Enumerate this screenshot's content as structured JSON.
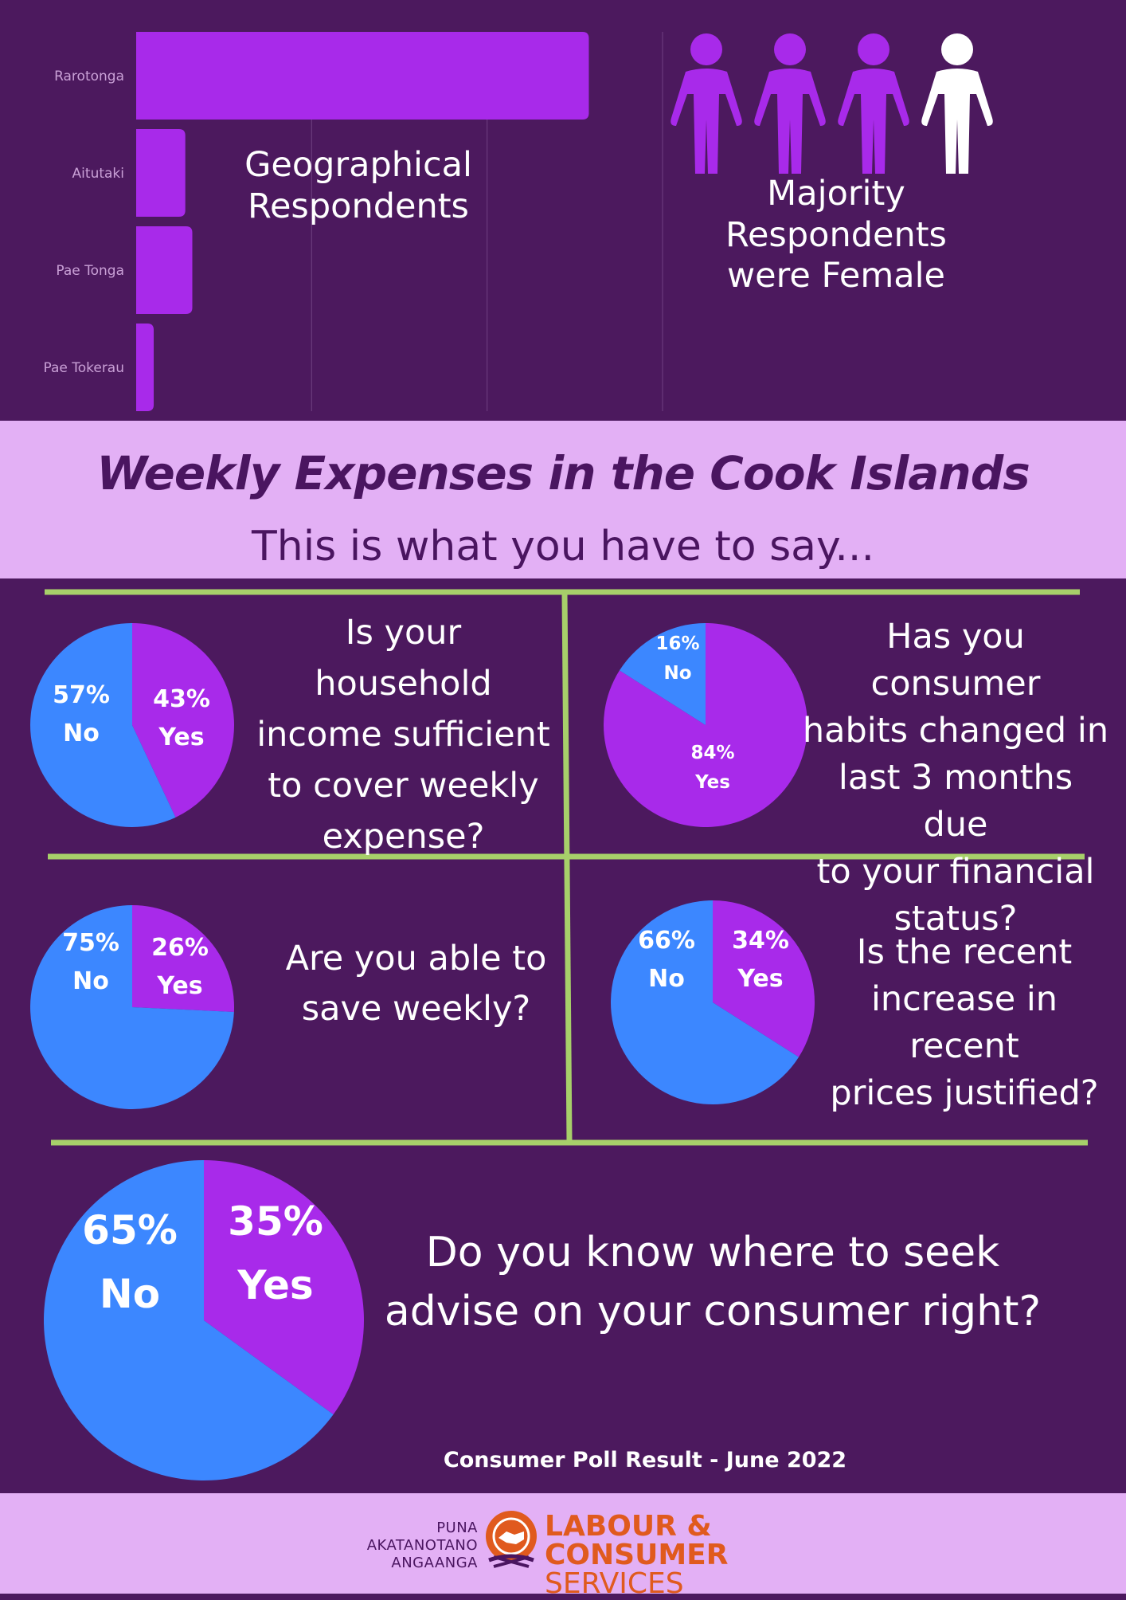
{
  "colors": {
    "background": "#4c195e",
    "purple": "#a82aea",
    "blue": "#3c87ff",
    "band": "#e3b0f5",
    "divider": "#a7cf6a",
    "footer_text": "#e05a1e"
  },
  "chart_data": [
    {
      "type": "bar",
      "orientation": "horizontal",
      "title": "Geographical Respondents",
      "categories": [
        "Rarotonga",
        "Aitutaki",
        "Pae Tonga",
        "Pae Tokerau"
      ],
      "values": [
        258,
        28,
        32,
        10
      ],
      "xlim": [
        0,
        300
      ],
      "xticks": [
        "0",
        "100",
        "200",
        "300"
      ],
      "grid": true
    },
    {
      "type": "pie",
      "question": "Is your household income sufficient to cover weekly expense?",
      "series": [
        {
          "name": "Yes",
          "value": 43,
          "pct_label": "43%"
        },
        {
          "name": "No",
          "value": 57,
          "pct_label": "57%"
        }
      ]
    },
    {
      "type": "pie",
      "question": "Has you consumer habits changed in last 3 months due to your financial status?",
      "series": [
        {
          "name": "Yes",
          "value": 84,
          "pct_label": "84%"
        },
        {
          "name": "No",
          "value": 16,
          "pct_label": "16%"
        }
      ]
    },
    {
      "type": "pie",
      "question": "Are you able to save weekly?",
      "series": [
        {
          "name": "Yes",
          "value": 26,
          "pct_label": "26%"
        },
        {
          "name": "No",
          "value": 75,
          "pct_label": "75%"
        }
      ]
    },
    {
      "type": "pie",
      "question": "Is the  recent increase in recent prices justified?",
      "series": [
        {
          "name": "Yes",
          "value": 34,
          "pct_label": "34%"
        },
        {
          "name": "No",
          "value": 66,
          "pct_label": "66%"
        }
      ]
    },
    {
      "type": "pie",
      "question": "Do you know where to seek advise on your consumer right?",
      "series": [
        {
          "name": "Yes",
          "value": 35,
          "pct_label": "35%"
        },
        {
          "name": "No",
          "value": 65,
          "pct_label": "65%"
        }
      ]
    }
  ],
  "gender": {
    "label_line1": "Majority Respondents",
    "label_line2": "were Female",
    "female_of_four": 3
  },
  "geo_label": {
    "line1": "Geographical",
    "line2": "Respondents"
  },
  "header": {
    "title": "Weekly Expenses in the Cook Islands",
    "subtitle": "This is what you have to say..."
  },
  "questions": {
    "q1": [
      "Is your",
      "household",
      "income sufficient",
      "to cover weekly",
      "expense?"
    ],
    "q2": [
      "Has you consumer",
      "habits changed in",
      "last 3 months due",
      "to your financial",
      "status?"
    ],
    "q3": [
      "Are you able to",
      "save weekly?"
    ],
    "q4": [
      "Is the  recent",
      "increase in recent",
      "prices justified?"
    ],
    "q5": [
      "Do you know where to seek",
      "advise on your consumer right?"
    ]
  },
  "footer": {
    "poll": "Consumer Poll Result  - June 2022",
    "logo_left": [
      "PUNA",
      "AKATANOTANO",
      "ANGAANGA"
    ],
    "logo_line1": "LABOUR & CONSUMER",
    "logo_line2": "SERVICES"
  }
}
